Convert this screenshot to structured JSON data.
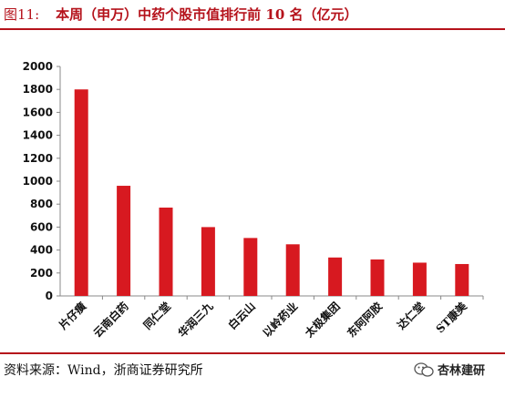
{
  "header": {
    "figure_no": "图11:",
    "title": "本周（申万）中药个股市值排行前 10 名（亿元）"
  },
  "footer": {
    "source": "资料来源：Wind，浙商证券研究所",
    "watermark": "杏林建研",
    "watermark_icon": "wechat-icon"
  },
  "colors": {
    "accent": "#b5121b",
    "bar": "#d71920"
  },
  "chart_data": {
    "type": "bar",
    "title": "本周（申万）中药个股市值排行前 10 名（亿元）",
    "categories": [
      "片仔癀",
      "云南白药",
      "同仁堂",
      "华润三九",
      "白云山",
      "以岭药业",
      "太极集团",
      "东阿阿胶",
      "达仁堂",
      "ST康美"
    ],
    "values": [
      1800,
      960,
      770,
      600,
      505,
      450,
      335,
      318,
      290,
      278
    ],
    "yticks": [
      0,
      200,
      400,
      600,
      800,
      1000,
      1200,
      1400,
      1600,
      1800,
      2000
    ],
    "ylim": [
      0,
      2000
    ],
    "xlabel": "",
    "ylabel": "",
    "grid": false,
    "legend": "none"
  }
}
